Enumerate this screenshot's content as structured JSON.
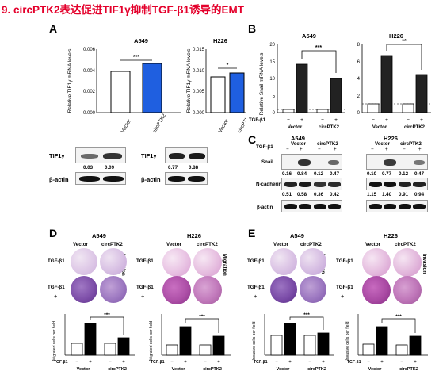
{
  "title": "9. circPTK2表达促进TIF1γ抑制TGF-β1诱导的EMT",
  "panels": {
    "A": {
      "letter": "A",
      "left_chart": {
        "title": "A549",
        "ylabel": "Relative TIF1γ mRNA levels",
        "yticks": [
          "0.000",
          "0.002",
          "0.004",
          "0.006"
        ],
        "categories": [
          "Vector",
          "circPTK2"
        ],
        "sig": "***",
        "blot_label": "TIF1γ",
        "blot_values": [
          "0.03",
          "0.09"
        ],
        "actin_label": "β-actin"
      },
      "right_chart": {
        "title": "H226",
        "ylabel": "Relative TIF1γ mRNA levels",
        "yticks": [
          "0.000",
          "0.005",
          "0.010",
          "0.015"
        ],
        "categories": [
          "Vector",
          "circPTK2"
        ],
        "sig": "*",
        "blot_label": "TIF1γ",
        "blot_values": [
          "0.77",
          "0.88"
        ],
        "actin_label": "β-actin"
      }
    },
    "B": {
      "letter": "B",
      "ylabel": "Relative Snail mRNA levels",
      "left": {
        "title": "A549",
        "yticks": [
          "0",
          "5",
          "10",
          "15",
          "20"
        ],
        "sig": "***"
      },
      "right": {
        "title": "H226",
        "yticks": [
          "0",
          "2",
          "4",
          "6",
          "8"
        ],
        "sig": "**"
      },
      "tgf_label": "TGF-β1",
      "signs": [
        "−",
        "+",
        "−",
        "+"
      ],
      "groups": [
        "Vector",
        "circPTK2"
      ]
    },
    "C": {
      "letter": "C",
      "left": {
        "title": "A549",
        "snail_values": [
          "0.16",
          "0.84",
          "0.12",
          "0.47"
        ],
        "ncad_values": [
          "0.51",
          "0.58",
          "0.36",
          "0.42"
        ]
      },
      "right": {
        "title": "H226",
        "snail_values": [
          "0.10",
          "0.77",
          "0.12",
          "0.47"
        ],
        "ncad_values": [
          "1.15",
          "1.40",
          "0.91",
          "0.94"
        ]
      },
      "tgf_label": "TGF-β1",
      "signs": [
        "−",
        "+",
        "−",
        "+"
      ],
      "groups": [
        "Vector",
        "circPTK2"
      ],
      "row_labels": [
        "Snail",
        "N-cadherin",
        "β-actin"
      ]
    },
    "D": {
      "letter": "D",
      "left_title": "A549",
      "right_title": "H226",
      "groups": [
        "Vector",
        "circPTK2"
      ],
      "side_label": "Migration",
      "tgf_label": "TGF-β1",
      "row_signs": [
        "−",
        "+"
      ],
      "sig": "***",
      "ylabel": "Migrated cells per field",
      "xsigns": [
        "−",
        "+",
        "−",
        "+"
      ]
    },
    "E": {
      "letter": "E",
      "left_title": "A549",
      "right_title": "H226",
      "groups": [
        "Vector",
        "circPTK2"
      ],
      "side_label": "Invasion",
      "tgf_label": "TGF-β1",
      "row_signs": [
        "−",
        "+"
      ],
      "sig": "***",
      "ylabel": "Invasive cells per field",
      "xsigns": [
        "−",
        "+",
        "−",
        "+"
      ]
    }
  },
  "chart_data": [
    {
      "type": "bar",
      "title": "A549",
      "ylabel": "Relative TIF1γ mRNA levels",
      "categories": [
        "Vector",
        "circPTK2"
      ],
      "values": [
        0.0039,
        0.0047
      ],
      "ylim": [
        0,
        0.006
      ]
    },
    {
      "type": "bar",
      "title": "H226",
      "ylabel": "Relative TIF1γ mRNA levels",
      "categories": [
        "Vector",
        "circPTK2"
      ],
      "values": [
        0.0085,
        0.0094
      ],
      "ylim": [
        0,
        0.015
      ]
    },
    {
      "type": "bar",
      "title": "A549",
      "ylabel": "Relative Snail mRNA levels",
      "categories": [
        "Vector −",
        "Vector +",
        "circPTK2 −",
        "circPTK2 +"
      ],
      "values": [
        1.0,
        14.3,
        1.0,
        10.0
      ],
      "ylim": [
        0,
        20
      ]
    },
    {
      "type": "bar",
      "title": "H226",
      "ylabel": "Relative Snail mRNA levels",
      "categories": [
        "Vector −",
        "Vector +",
        "circPTK2 −",
        "circPTK2 +"
      ],
      "values": [
        1.0,
        6.7,
        1.0,
        4.5
      ],
      "ylim": [
        0,
        8
      ]
    },
    {
      "type": "bar",
      "title": "A549",
      "ylabel": "Migrated cells per field",
      "categories": [
        "Vector −",
        "Vector +",
        "circPTK2 −",
        "circPTK2 +"
      ],
      "values": [
        150,
        400,
        150,
        220
      ],
      "ylim": [
        0,
        500
      ]
    },
    {
      "type": "bar",
      "title": "H226",
      "ylabel": "Migrated cells per field",
      "categories": [
        "Vector −",
        "Vector +",
        "circPTK2 −",
        "circPTK2 +"
      ],
      "values": [
        120,
        290,
        120,
        190
      ],
      "ylim": [
        0,
        400
      ]
    },
    {
      "type": "bar",
      "title": "A549",
      "ylabel": "Invasive cells per field",
      "categories": [
        "Vector −",
        "Vector +",
        "circPTK2 −",
        "circPTK2 +"
      ],
      "values": [
        140,
        230,
        140,
        160
      ],
      "ylim": [
        0,
        300
      ]
    },
    {
      "type": "bar",
      "title": "H226",
      "ylabel": "Invasive cells per field",
      "categories": [
        "Vector −",
        "Vector +",
        "circPTK2 −",
        "circPTK2 +"
      ],
      "values": [
        130,
        260,
        120,
        180
      ],
      "ylim": [
        0,
        350
      ]
    }
  ]
}
